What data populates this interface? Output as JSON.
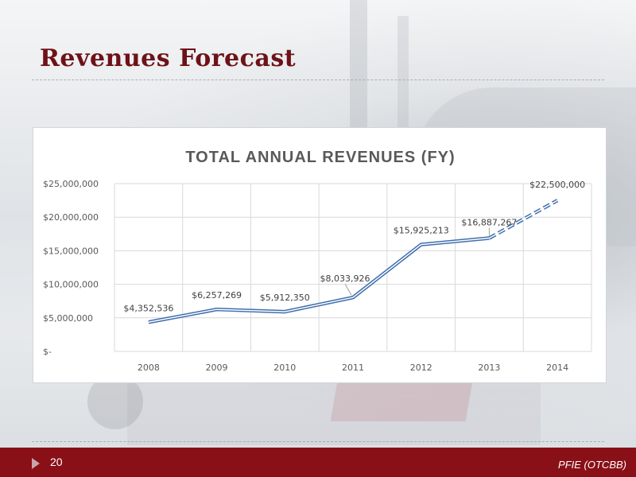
{
  "slide": {
    "title": "Revenues Forecast",
    "page_number": "20",
    "ticker": "PFIE (OTCBB)"
  },
  "colors": {
    "accent": "#8a1017",
    "title": "#6e1218",
    "line": "#3f6fad"
  },
  "chart_data": {
    "type": "line",
    "title": "TOTAL ANNUAL REVENUES (FY)",
    "categories": [
      "2008",
      "2009",
      "2010",
      "2011",
      "2012",
      "2013",
      "2014"
    ],
    "series": [
      {
        "values": [
          4352536,
          6257269,
          5912350,
          8033926,
          15925213,
          16887267,
          22500000
        ],
        "labels": [
          "$4,352,536",
          "$6,257,269",
          "$5,912,350",
          "$8,033,926",
          "$15,925,213",
          "$16,887,267",
          "$22,500,000"
        ],
        "projected_from_index": 5
      }
    ],
    "ylim": [
      0,
      25000000
    ],
    "yticks": [
      0,
      5000000,
      10000000,
      15000000,
      20000000,
      25000000
    ],
    "ytick_labels": [
      "$-",
      "$5,000,000",
      "$10,000,000",
      "$15,000,000",
      "$20,000,000",
      "$25,000,000"
    ],
    "grid": true,
    "legend": "none"
  }
}
